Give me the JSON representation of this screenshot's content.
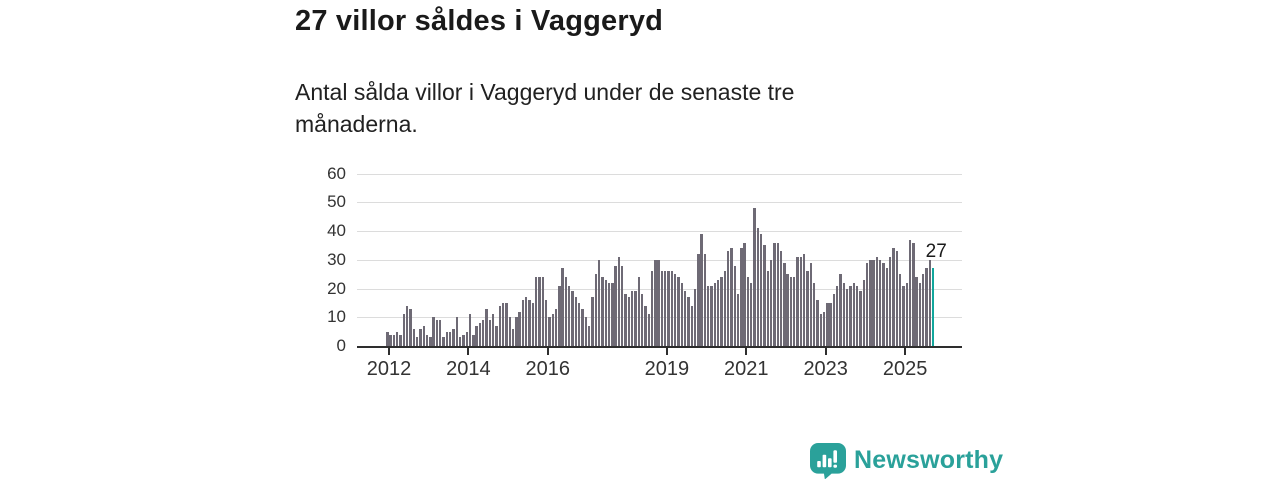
{
  "header": {
    "title": "27 villor såldes i Vaggeryd",
    "subtitle": "Antal sålda villor i Vaggeryd under de senaste tre månaderna."
  },
  "chart_data": {
    "type": "bar",
    "title": "27 villor såldes i Vaggeryd",
    "xlabel": "",
    "ylabel": "",
    "unit": "sålda villor (rullande tre månader)",
    "freq": "monthly",
    "start_month": "2011-12",
    "end_month": "2025-09",
    "values": [
      5,
      4,
      4,
      5,
      4,
      11,
      14,
      13,
      6,
      3,
      6,
      7,
      4,
      3,
      10,
      9,
      9,
      3,
      5,
      5,
      6,
      10,
      3,
      4,
      5,
      11,
      4,
      7,
      8,
      9,
      13,
      9,
      11,
      7,
      14,
      15,
      15,
      10,
      6,
      10,
      12,
      16,
      17,
      16,
      15,
      24,
      24,
      24,
      16,
      10,
      11,
      13,
      21,
      27,
      24,
      21,
      19,
      17,
      15,
      13,
      10,
      7,
      17,
      25,
      30,
      24,
      23,
      22,
      22,
      28,
      31,
      28,
      18,
      17,
      19,
      19,
      24,
      18,
      14,
      11,
      26,
      30,
      30,
      26,
      26,
      26,
      26,
      25,
      24,
      22,
      19,
      17,
      14,
      20,
      32,
      39,
      32,
      21,
      21,
      22,
      23,
      24,
      26,
      33,
      34,
      28,
      18,
      34,
      36,
      24,
      22,
      48,
      41,
      39,
      35,
      26,
      30,
      36,
      36,
      33,
      29,
      25,
      24,
      24,
      31,
      31,
      32,
      26,
      29,
      22,
      16,
      11,
      12,
      15,
      15,
      18,
      21,
      25,
      22,
      20,
      21,
      22,
      21,
      19,
      23,
      29,
      30,
      30,
      31,
      30,
      29,
      27,
      31,
      34,
      33,
      25,
      21,
      22,
      37,
      36,
      24,
      22,
      25,
      27,
      30,
      27
    ],
    "highlight_index": 165,
    "annotation": {
      "text": "27"
    },
    "yticks": [
      0,
      10,
      20,
      30,
      40,
      50,
      60
    ],
    "ylim": [
      0,
      63
    ],
    "xticks": [
      2012,
      2014,
      2016,
      2019,
      2021,
      2023,
      2025
    ],
    "grid": true,
    "legend": "none",
    "bar_color": "#6e6a75",
    "highlight_color": "#12a69c",
    "axis_color": "#2e2e2e",
    "gridline_color": "#dcdcdc",
    "tick_label_color": "#333333"
  },
  "footer": {
    "brand": "Newsworthy",
    "logo_icon": "bar-chart-speech-bubble-icon",
    "brand_color": "#2aa19a"
  }
}
